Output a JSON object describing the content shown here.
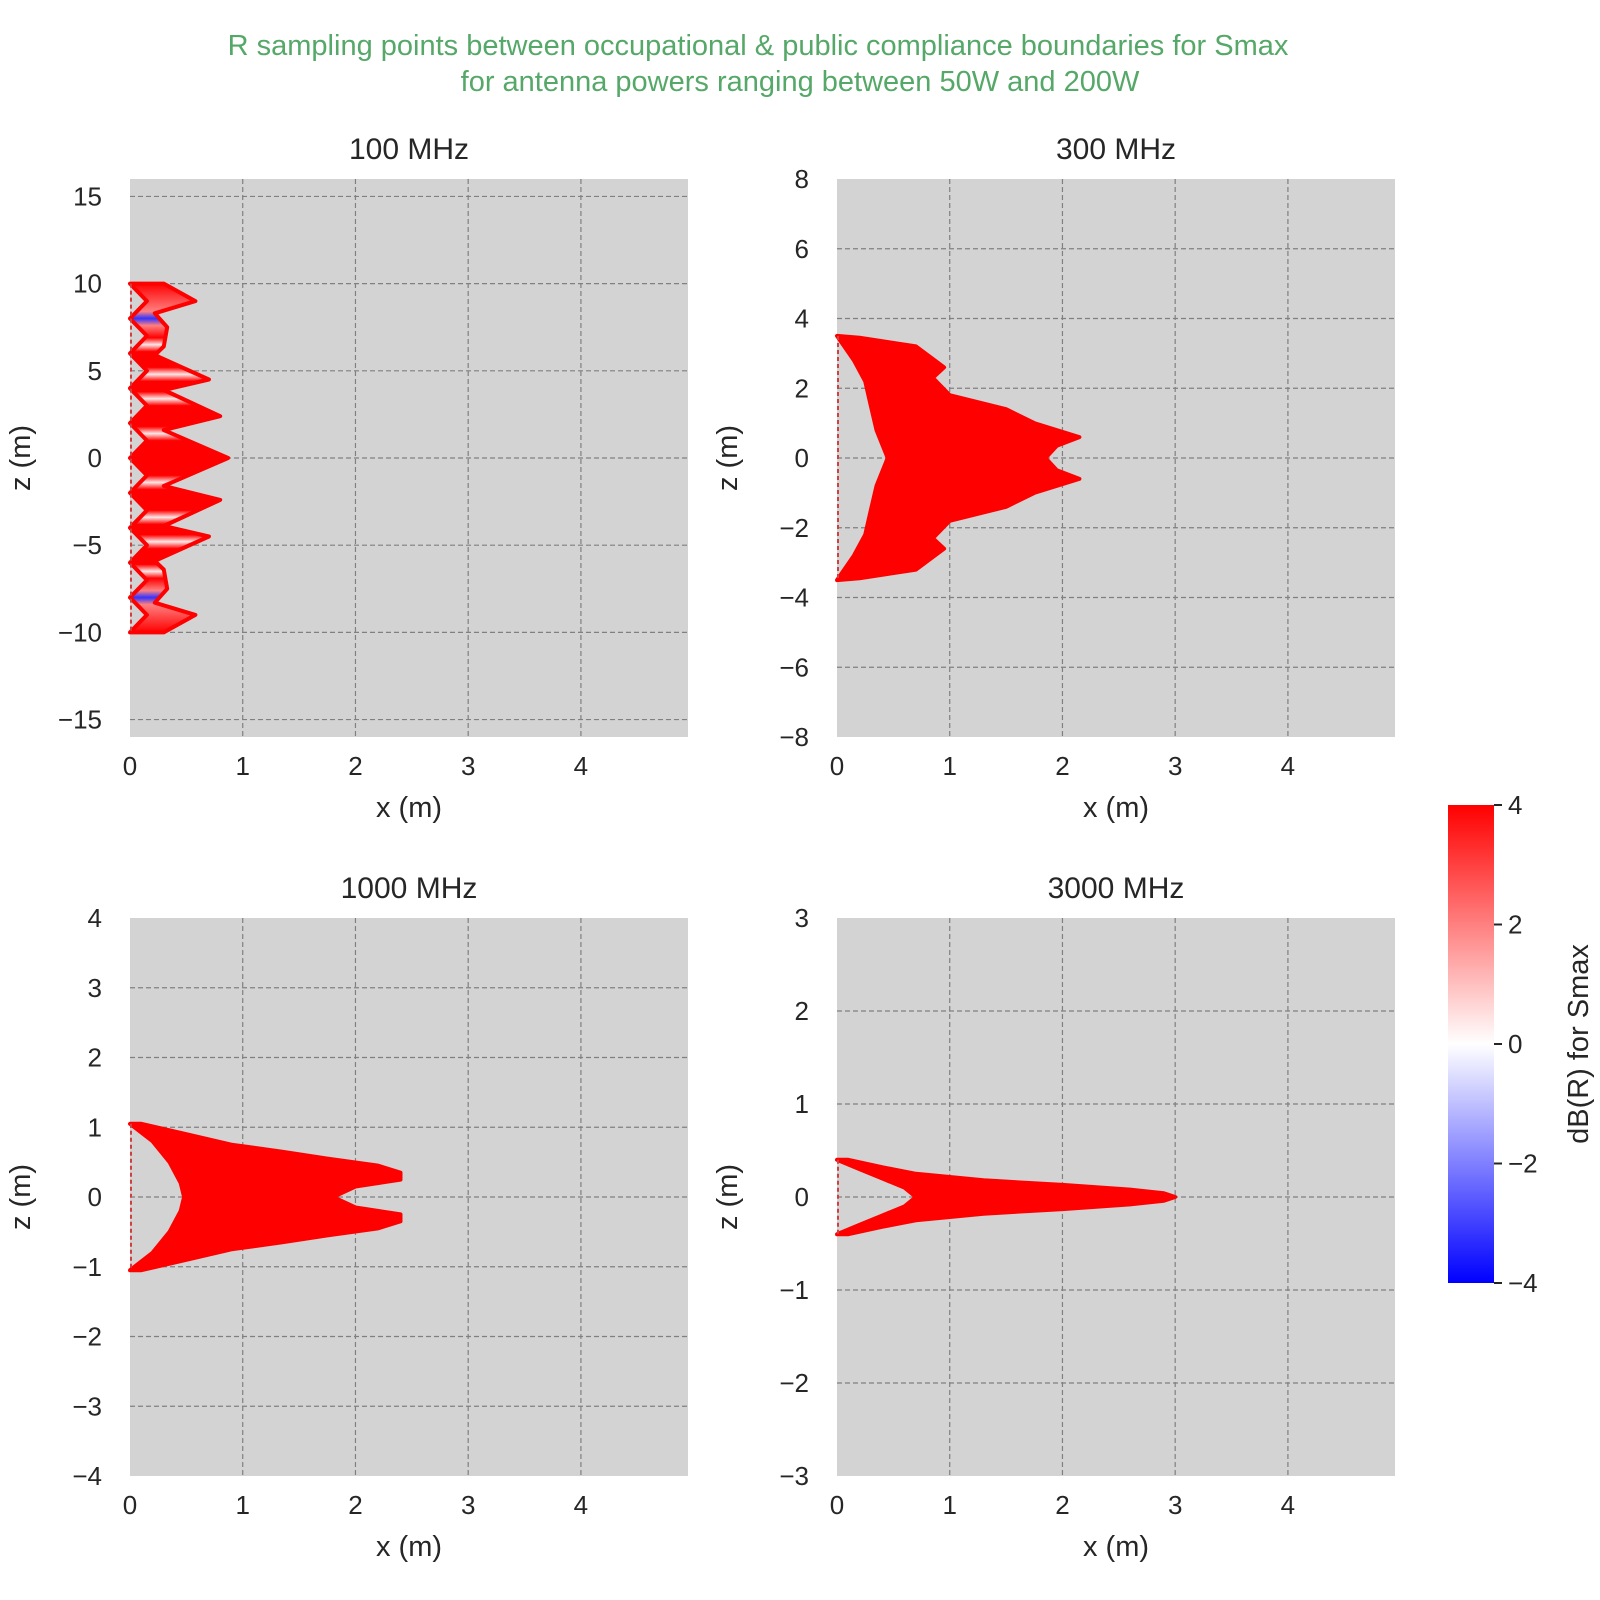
{
  "figure": {
    "suptitle_line1": "R sampling points between occupational & public compliance boundaries for Smax",
    "suptitle_line2": "for antenna powers ranging between 50W and 200W",
    "suptitle_color": "#55a868",
    "plot_background": "#d3d3d3",
    "grid_color": "#808080"
  },
  "chart_data": [
    {
      "type": "scatter",
      "title": "100 MHz",
      "xlabel": "x (m)",
      "ylabel": "z (m)",
      "xlim": [
        0,
        4.95
      ],
      "ylim": [
        -16,
        16
      ],
      "xticks": [
        0,
        1,
        2,
        3,
        4
      ],
      "yticks": [
        -15,
        -10,
        -5,
        0,
        5,
        10,
        15
      ],
      "grid": true,
      "region_boundary": {
        "z_min": -10.0,
        "z_max": 10.0,
        "inner_x_at_z": [
          [
            -10,
            0
          ],
          [
            -9,
            0.15
          ],
          [
            -8,
            0.0
          ],
          [
            -7,
            0.15
          ],
          [
            -6,
            0.0
          ],
          [
            -5,
            0.15
          ],
          [
            -4,
            0.0
          ],
          [
            -3,
            0.15
          ],
          [
            -2,
            0.0
          ],
          [
            -1,
            0.15
          ],
          [
            0,
            0.0
          ],
          [
            1,
            0.15
          ],
          [
            2,
            0.0
          ],
          [
            3,
            0.15
          ],
          [
            4,
            0.0
          ],
          [
            5,
            0.15
          ],
          [
            6,
            0.0
          ],
          [
            7,
            0.15
          ],
          [
            8,
            0.0
          ],
          [
            9,
            0.15
          ],
          [
            10,
            0
          ]
        ],
        "outer_x_at_z": [
          [
            -10,
            0.3
          ],
          [
            -9.0,
            0.58
          ],
          [
            -8.3,
            0.22
          ],
          [
            -7.5,
            0.33
          ],
          [
            -6.4,
            0.3
          ],
          [
            -5.9,
            0.22
          ],
          [
            -4.5,
            0.7
          ],
          [
            -3.9,
            0.3
          ],
          [
            -2.4,
            0.8
          ],
          [
            -1.6,
            0.3
          ],
          [
            0,
            0.87
          ],
          [
            1.6,
            0.3
          ],
          [
            2.4,
            0.8
          ],
          [
            3.9,
            0.3
          ],
          [
            4.5,
            0.7
          ],
          [
            5.9,
            0.22
          ],
          [
            6.4,
            0.3
          ],
          [
            7.5,
            0.33
          ],
          [
            8.3,
            0.22
          ],
          [
            9.0,
            0.58
          ],
          [
            10,
            0.3
          ]
        ]
      },
      "blue_bands_z": [
        -8.0,
        8.0
      ],
      "white_bands_z": [
        -6.5,
        -4.8,
        -3.4,
        -1.4,
        1.4,
        3.4,
        4.8,
        6.5
      ]
    },
    {
      "type": "scatter",
      "title": "300 MHz",
      "xlabel": "x (m)",
      "ylabel": "z (m)",
      "xlim": [
        0,
        4.95
      ],
      "ylim": [
        -8,
        8
      ],
      "xticks": [
        0,
        1,
        2,
        3,
        4
      ],
      "yticks": [
        -8,
        -6,
        -4,
        -2,
        0,
        2,
        4,
        6,
        8
      ],
      "grid": true,
      "region_boundary": {
        "z_min": -3.5,
        "z_max": 3.5,
        "inner_x_at_z": [
          [
            -3.5,
            0
          ],
          [
            -2.8,
            0.15
          ],
          [
            -2.2,
            0.25
          ],
          [
            -1.5,
            0.3
          ],
          [
            -0.8,
            0.35
          ],
          [
            0,
            0.45
          ],
          [
            0.8,
            0.35
          ],
          [
            1.5,
            0.3
          ],
          [
            2.2,
            0.25
          ],
          [
            2.8,
            0.15
          ],
          [
            3.5,
            0
          ]
        ],
        "outer_x_at_z": [
          [
            -3.45,
            0.2
          ],
          [
            -3.2,
            0.7
          ],
          [
            -2.6,
            0.95
          ],
          [
            -2.3,
            0.85
          ],
          [
            -1.8,
            1.0
          ],
          [
            -1.4,
            1.5
          ],
          [
            -1.0,
            1.75
          ],
          [
            -0.6,
            2.15
          ],
          [
            -0.35,
            1.95
          ],
          [
            0,
            1.85
          ],
          [
            0.35,
            1.95
          ],
          [
            0.6,
            2.15
          ],
          [
            1.0,
            1.75
          ],
          [
            1.4,
            1.5
          ],
          [
            1.8,
            1.0
          ],
          [
            2.3,
            0.85
          ],
          [
            2.6,
            0.95
          ],
          [
            3.2,
            0.7
          ],
          [
            3.45,
            0.2
          ]
        ]
      }
    },
    {
      "type": "scatter",
      "title": "1000 MHz",
      "xlabel": "x (m)",
      "ylabel": "z (m)",
      "xlim": [
        0,
        4.95
      ],
      "ylim": [
        -4,
        4
      ],
      "xticks": [
        0,
        1,
        2,
        3,
        4
      ],
      "yticks": [
        -4,
        -3,
        -2,
        -1,
        0,
        1,
        2,
        3,
        4
      ],
      "grid": true,
      "region_boundary": {
        "z_min": -1.05,
        "z_max": 1.05,
        "inner_x_at_z": [
          [
            -1.05,
            0.0
          ],
          [
            -0.8,
            0.2
          ],
          [
            -0.5,
            0.35
          ],
          [
            -0.2,
            0.45
          ],
          [
            0,
            0.48
          ],
          [
            0.2,
            0.45
          ],
          [
            0.5,
            0.35
          ],
          [
            0.8,
            0.2
          ],
          [
            1.05,
            0.0
          ]
        ],
        "outer_x_at_z": [
          [
            -1.05,
            0.1
          ],
          [
            -0.9,
            0.5
          ],
          [
            -0.75,
            0.9
          ],
          [
            -0.65,
            1.35
          ],
          [
            -0.55,
            1.75
          ],
          [
            -0.45,
            2.2
          ],
          [
            -0.35,
            2.4
          ],
          [
            -0.25,
            2.4
          ],
          [
            -0.15,
            2.0
          ],
          [
            0,
            1.8
          ],
          [
            0.15,
            2.0
          ],
          [
            0.25,
            2.4
          ],
          [
            0.35,
            2.4
          ],
          [
            0.45,
            2.2
          ],
          [
            0.55,
            1.75
          ],
          [
            0.65,
            1.35
          ],
          [
            0.75,
            0.9
          ],
          [
            0.9,
            0.5
          ],
          [
            1.05,
            0.1
          ]
        ]
      }
    },
    {
      "type": "scatter",
      "title": "3000 MHz",
      "xlabel": "x (m)",
      "ylabel": "z (m)",
      "xlim": [
        0,
        4.95
      ],
      "ylim": [
        -3,
        3
      ],
      "xticks": [
        0,
        1,
        2,
        3,
        4
      ],
      "yticks": [
        -3,
        -2,
        -1,
        0,
        1,
        2,
        3
      ],
      "grid": true,
      "region_boundary": {
        "z_min": -0.4,
        "z_max": 0.4,
        "inner_x_at_z": [
          [
            -0.4,
            0.0
          ],
          [
            -0.3,
            0.2
          ],
          [
            -0.2,
            0.4
          ],
          [
            -0.1,
            0.6
          ],
          [
            0,
            0.7
          ],
          [
            0.1,
            0.6
          ],
          [
            0.2,
            0.4
          ],
          [
            0.3,
            0.2
          ],
          [
            0.4,
            0.0
          ]
        ],
        "outer_x_at_z": [
          [
            -0.4,
            0.1
          ],
          [
            -0.32,
            0.4
          ],
          [
            -0.25,
            0.7
          ],
          [
            -0.18,
            1.3
          ],
          [
            -0.13,
            2.0
          ],
          [
            -0.08,
            2.6
          ],
          [
            -0.04,
            2.9
          ],
          [
            0,
            3.0
          ],
          [
            0.04,
            2.9
          ],
          [
            0.08,
            2.6
          ],
          [
            0.13,
            2.0
          ],
          [
            0.18,
            1.3
          ],
          [
            0.25,
            0.7
          ],
          [
            0.32,
            0.4
          ],
          [
            0.4,
            0.1
          ]
        ]
      }
    }
  ],
  "colorbar": {
    "label": "dB(R) for Smax",
    "vmin": -4,
    "vmax": 4,
    "ticks": [
      4,
      2,
      0,
      -2,
      -4
    ],
    "tick_labels": [
      "4",
      "2",
      "0",
      "−2",
      "−4"
    ],
    "cmap": "bwr",
    "color_high": "#ff0000",
    "color_mid": "#ffffff",
    "color_low": "#0000ff"
  }
}
